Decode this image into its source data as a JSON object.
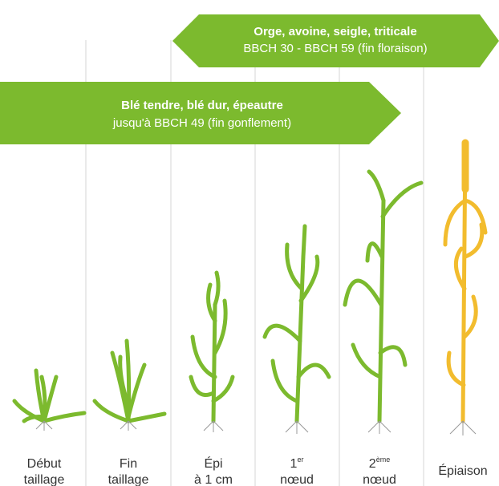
{
  "banners": [
    {
      "title": "Orge, avoine, seigle, triticale",
      "subtitle": "BBCH 30 - BBCH 59 (fin floraison)"
    },
    {
      "title": "Blé tendre, blé dur, épeautre",
      "subtitle": "jusqu'à BBCH 49 (fin gonflement)"
    }
  ],
  "stages": [
    {
      "line1": "Début",
      "line2": "taillage"
    },
    {
      "line1": "Fin",
      "line2": "taillage"
    },
    {
      "line1": "Épi",
      "line2": "à 1 cm"
    },
    {
      "line1": "1",
      "sup": "er",
      "line2": "nœud"
    },
    {
      "line1": "2",
      "sup": "ème",
      "line2": "nœud"
    },
    {
      "line1": "Épiaison"
    }
  ]
}
